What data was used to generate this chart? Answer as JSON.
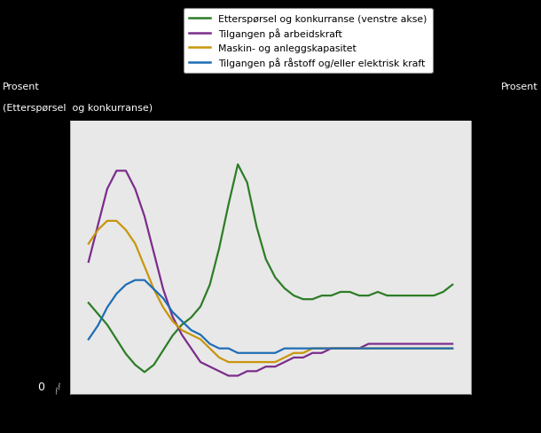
{
  "left_ylabel_line1": "Prosent",
  "left_ylabel_line2": "(Etterspørsel  og konkurranse)",
  "right_ylabel": "Prosent",
  "background_color": "#000000",
  "plot_bg_color": "#e8e8e8",
  "legend_entries": [
    "Etterspørsel og konkurranse (venstre akse)",
    "Tilgangen på arbeidskraft",
    "Maskin- og anleggskapasitet",
    "Tilgangen på råstoff og/eller elektrisk kraft"
  ],
  "line_colors": [
    "#2d7d27",
    "#7b2d8b",
    "#c8960c",
    "#1e6db5"
  ],
  "green_data": [
    5,
    2,
    -1,
    -5,
    -9,
    -12,
    -14,
    -12,
    -8,
    -4,
    -1,
    1,
    4,
    10,
    20,
    32,
    43,
    38,
    26,
    17,
    12,
    9,
    7,
    6,
    6,
    7,
    7,
    8,
    8,
    7,
    7,
    8,
    7,
    7,
    7,
    7,
    7,
    7,
    8,
    10
  ],
  "purple_data": [
    14,
    22,
    30,
    34,
    34,
    30,
    24,
    16,
    8,
    2,
    -2,
    -5,
    -8,
    -9,
    -10,
    -11,
    -11,
    -10,
    -10,
    -9,
    -9,
    -8,
    -7,
    -7,
    -6,
    -6,
    -5,
    -5,
    -5,
    -5,
    -4,
    -4,
    -4,
    -4,
    -4,
    -4,
    -4,
    -4,
    -4,
    -4
  ],
  "orange_data": [
    18,
    21,
    23,
    23,
    21,
    18,
    13,
    8,
    4,
    1,
    -1,
    -2,
    -3,
    -5,
    -7,
    -8,
    -8,
    -8,
    -8,
    -8,
    -8,
    -7,
    -6,
    -6,
    -5,
    -5,
    -5,
    -5,
    -5,
    -5,
    -5,
    -5,
    -5,
    -5,
    -5,
    -5,
    -5,
    -5,
    -5,
    -5
  ],
  "blue_data": [
    -3,
    0,
    4,
    7,
    9,
    10,
    10,
    8,
    6,
    3,
    1,
    -1,
    -2,
    -4,
    -5,
    -5,
    -6,
    -6,
    -6,
    -6,
    -6,
    -5,
    -5,
    -5,
    -5,
    -5,
    -5,
    -5,
    -5,
    -5,
    -5,
    -5,
    -5,
    -5,
    -5,
    -5,
    -5,
    -5,
    -5,
    -5
  ],
  "left_ylim": [
    -20,
    55
  ],
  "right_ylim": [
    -15,
    45
  ],
  "figsize": [
    6.1,
    4.89
  ],
  "dpi": 100
}
